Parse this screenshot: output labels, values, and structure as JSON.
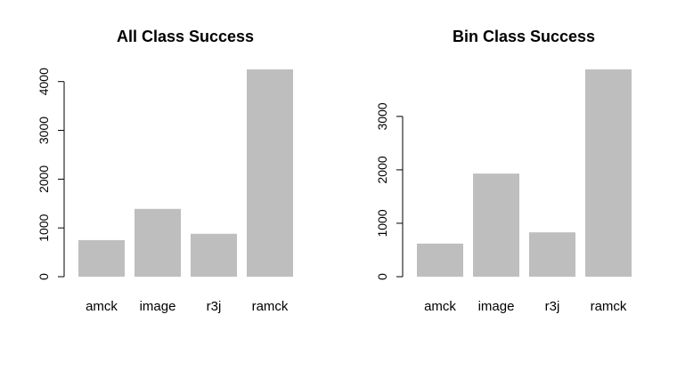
{
  "chart_data": [
    {
      "type": "bar",
      "title": "All Class Success",
      "categories": [
        "amck",
        "image",
        "r3j",
        "ramck"
      ],
      "values": [
        750,
        1390,
        880,
        4250
      ],
      "ylim": [
        0,
        4250
      ],
      "yticks": [
        0,
        1000,
        2000,
        3000,
        4000
      ],
      "ytick_labels": [
        "0",
        "1000",
        "2000",
        "3000",
        "4000"
      ],
      "xlabel": "",
      "ylabel": "",
      "grid": false,
      "bar_color": "#bebebe"
    },
    {
      "type": "bar",
      "title": "Bin Class Success",
      "categories": [
        "amck",
        "image",
        "r3j",
        "ramck"
      ],
      "values": [
        620,
        1930,
        830,
        3880
      ],
      "ylim": [
        0,
        3880
      ],
      "yticks": [
        0,
        1000,
        2000,
        3000
      ],
      "ytick_labels": [
        "0",
        "1000",
        "2000",
        "3000"
      ],
      "xlabel": "",
      "ylabel": "",
      "grid": false,
      "bar_color": "#bebebe"
    }
  ]
}
